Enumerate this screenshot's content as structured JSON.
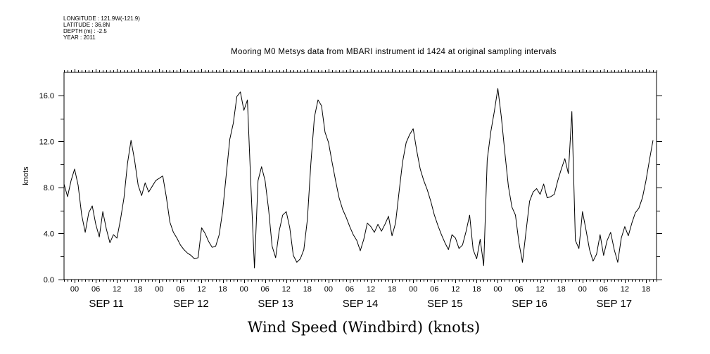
{
  "header": {
    "longitude": "LONGITUDE : 121.9W(-121.9)",
    "latitude": "LATITUDE : 36.8N",
    "depth": "DEPTH (m) : -2.5",
    "year": "YEAR : 2011"
  },
  "chart_data": {
    "type": "line",
    "title": "Mooring M0 Metsys data from MBARI instrument id 1424 at original sampling intervals",
    "footer_title": "Wind Speed (Windbird) (knots)",
    "ylabel": "knots",
    "ylim": [
      0,
      18
    ],
    "yticks": [
      "0.0",
      "4.0",
      "8.0",
      "12.0",
      "16.0"
    ],
    "xlim_hours": [
      -3,
      165
    ],
    "hour_tick_labels": [
      "00",
      "06",
      "12",
      "18"
    ],
    "day_labels": [
      "SEP 11",
      "SEP 12",
      "SEP 13",
      "SEP 14",
      "SEP 15",
      "SEP 16",
      "SEP 17"
    ],
    "series": [
      {
        "points_hours_vs_knots": [
          [
            -3,
            8.3
          ],
          [
            -2,
            7.2
          ],
          [
            -1,
            8.6
          ],
          [
            0,
            9.6
          ],
          [
            1,
            8.2
          ],
          [
            2,
            5.6
          ],
          [
            3,
            4.1
          ],
          [
            4,
            5.8
          ],
          [
            5,
            6.4
          ],
          [
            6,
            4.8
          ],
          [
            7,
            3.7
          ],
          [
            8,
            5.9
          ],
          [
            9,
            4.4
          ],
          [
            10,
            3.2
          ],
          [
            11,
            3.9
          ],
          [
            12,
            3.6
          ],
          [
            13,
            5.2
          ],
          [
            14,
            7.1
          ],
          [
            15,
            10.1
          ],
          [
            16,
            12.1
          ],
          [
            17,
            10.4
          ],
          [
            18,
            8.2
          ],
          [
            19,
            7.3
          ],
          [
            20,
            8.4
          ],
          [
            21,
            7.6
          ],
          [
            22,
            8.1
          ],
          [
            23,
            8.6
          ],
          [
            24,
            8.8
          ],
          [
            25,
            9.0
          ],
          [
            26,
            7.2
          ],
          [
            27,
            5.0
          ],
          [
            28,
            4.1
          ],
          [
            29,
            3.6
          ],
          [
            30,
            3.0
          ],
          [
            31,
            2.6
          ],
          [
            32,
            2.3
          ],
          [
            33,
            2.1
          ],
          [
            34,
            1.8
          ],
          [
            35,
            1.9
          ],
          [
            36,
            4.5
          ],
          [
            37,
            4.0
          ],
          [
            38,
            3.3
          ],
          [
            39,
            2.8
          ],
          [
            40,
            2.9
          ],
          [
            41,
            3.9
          ],
          [
            42,
            6.0
          ],
          [
            43,
            9.1
          ],
          [
            44,
            12.2
          ],
          [
            45,
            13.6
          ],
          [
            46,
            15.9
          ],
          [
            47,
            16.3
          ],
          [
            48,
            14.7
          ],
          [
            49,
            15.6
          ],
          [
            50,
            8.1
          ],
          [
            51,
            1.0
          ],
          [
            52,
            8.6
          ],
          [
            53,
            9.8
          ],
          [
            54,
            8.6
          ],
          [
            55,
            6.1
          ],
          [
            56,
            2.9
          ],
          [
            57,
            1.9
          ],
          [
            58,
            4.2
          ],
          [
            59,
            5.6
          ],
          [
            60,
            5.9
          ],
          [
            61,
            4.5
          ],
          [
            62,
            2.1
          ],
          [
            63,
            1.5
          ],
          [
            64,
            1.8
          ],
          [
            65,
            2.6
          ],
          [
            66,
            5.2
          ],
          [
            67,
            10.1
          ],
          [
            68,
            14.1
          ],
          [
            69,
            15.6
          ],
          [
            70,
            15.1
          ],
          [
            71,
            12.8
          ],
          [
            72,
            11.9
          ],
          [
            73,
            10.2
          ],
          [
            74,
            8.6
          ],
          [
            75,
            7.1
          ],
          [
            76,
            6.1
          ],
          [
            77,
            5.4
          ],
          [
            78,
            4.6
          ],
          [
            79,
            3.9
          ],
          [
            80,
            3.4
          ],
          [
            81,
            2.5
          ],
          [
            82,
            3.5
          ],
          [
            83,
            4.9
          ],
          [
            84,
            4.6
          ],
          [
            85,
            4.1
          ],
          [
            86,
            4.8
          ],
          [
            87,
            4.2
          ],
          [
            88,
            4.8
          ],
          [
            89,
            5.5
          ],
          [
            90,
            3.8
          ],
          [
            91,
            4.9
          ],
          [
            92,
            7.6
          ],
          [
            93,
            10.2
          ],
          [
            94,
            11.9
          ],
          [
            95,
            12.6
          ],
          [
            96,
            13.1
          ],
          [
            97,
            11.2
          ],
          [
            98,
            9.6
          ],
          [
            99,
            8.6
          ],
          [
            100,
            7.8
          ],
          [
            101,
            6.8
          ],
          [
            102,
            5.6
          ],
          [
            103,
            4.7
          ],
          [
            104,
            3.9
          ],
          [
            105,
            3.2
          ],
          [
            106,
            2.6
          ],
          [
            107,
            3.9
          ],
          [
            108,
            3.6
          ],
          [
            109,
            2.7
          ],
          [
            110,
            3.0
          ],
          [
            111,
            4.2
          ],
          [
            112,
            5.6
          ],
          [
            113,
            2.6
          ],
          [
            114,
            1.8
          ],
          [
            115,
            3.5
          ],
          [
            116,
            1.2
          ],
          [
            117,
            10.4
          ],
          [
            118,
            12.8
          ],
          [
            119,
            14.6
          ],
          [
            120,
            16.6
          ],
          [
            121,
            14.1
          ],
          [
            122,
            11.0
          ],
          [
            123,
            8.1
          ],
          [
            124,
            6.3
          ],
          [
            125,
            5.6
          ],
          [
            126,
            3.2
          ],
          [
            127,
            1.5
          ],
          [
            128,
            4.2
          ],
          [
            129,
            6.8
          ],
          [
            130,
            7.6
          ],
          [
            131,
            7.9
          ],
          [
            132,
            7.4
          ],
          [
            133,
            8.3
          ],
          [
            134,
            7.1
          ],
          [
            135,
            7.2
          ],
          [
            136,
            7.4
          ],
          [
            137,
            8.6
          ],
          [
            138,
            9.6
          ],
          [
            139,
            10.5
          ],
          [
            140,
            9.2
          ],
          [
            141,
            14.6
          ],
          [
            142,
            3.4
          ],
          [
            143,
            2.7
          ],
          [
            144,
            5.9
          ],
          [
            145,
            4.3
          ],
          [
            146,
            2.6
          ],
          [
            147,
            1.6
          ],
          [
            148,
            2.2
          ],
          [
            149,
            3.9
          ],
          [
            150,
            2.1
          ],
          [
            151,
            3.4
          ],
          [
            152,
            4.1
          ],
          [
            153,
            2.6
          ],
          [
            154,
            1.5
          ],
          [
            155,
            3.6
          ],
          [
            156,
            4.6
          ],
          [
            157,
            3.8
          ],
          [
            158,
            4.9
          ],
          [
            159,
            5.8
          ],
          [
            160,
            6.2
          ],
          [
            161,
            7.1
          ],
          [
            162,
            8.6
          ],
          [
            163,
            10.4
          ],
          [
            164,
            12.1
          ]
        ]
      }
    ]
  }
}
